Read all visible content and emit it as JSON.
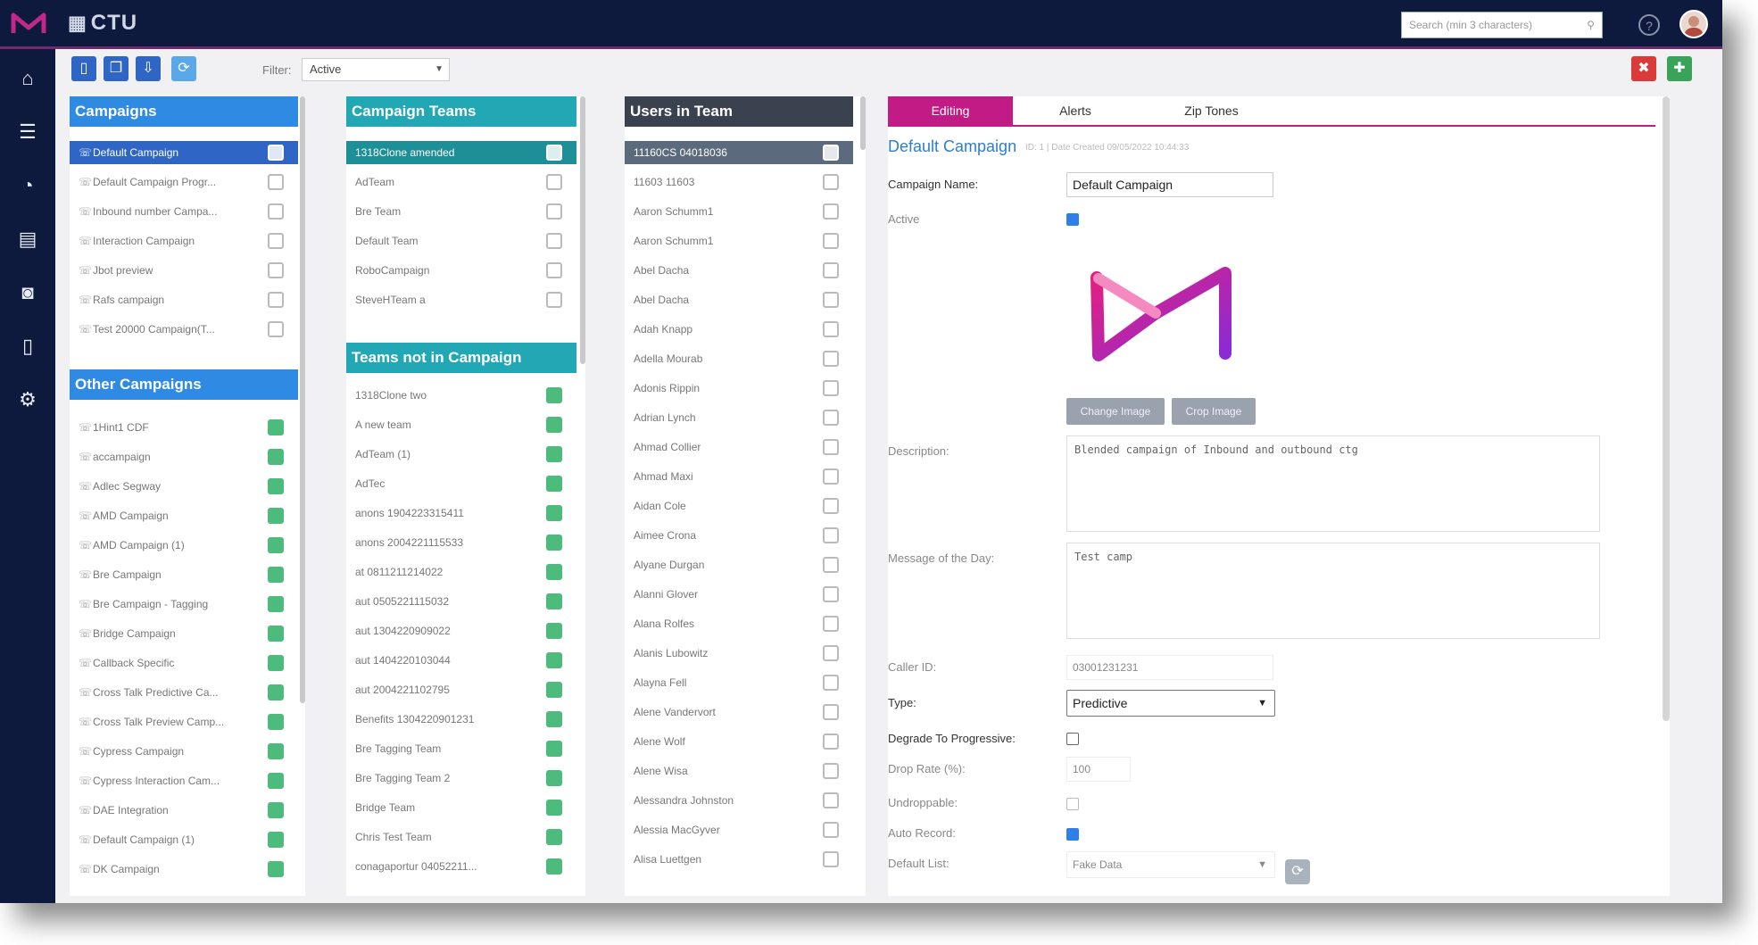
{
  "topbar": {
    "brand": "CTU",
    "search_placeholder": "Search (min 3 characters)"
  },
  "toolbar": {
    "filter_label": "Filter:",
    "filter_value": "Active"
  },
  "campaigns": {
    "title": "Campaigns",
    "items": [
      "Default Campaign",
      "Default Campaign Progr...",
      "Inbound number Campa...",
      "Interaction Campaign",
      "Jbot preview",
      "Rafs campaign",
      "Test 20000 Campaign(T..."
    ]
  },
  "other_campaigns": {
    "title": "Other Campaigns",
    "items": [
      "1Hint1 CDF",
      "accampaign",
      "Adlec Segway",
      "AMD Campaign",
      "AMD Campaign (1)",
      "Bre Campaign",
      "Bre Campaign - Tagging",
      "Bridge Campaign",
      "Callback Specific",
      "Cross Talk Predictive Ca...",
      "Cross Talk Preview Camp...",
      "Cypress Campaign",
      "Cypress Interaction Cam...",
      "DAE Integration",
      "Default Campaign (1)",
      "DK Campaign"
    ]
  },
  "campaign_teams": {
    "title": "Campaign Teams",
    "items": [
      "1318Clone amended",
      "AdTeam",
      "Bre Team",
      "Default Team",
      "RoboCampaign",
      "SteveHTeam a"
    ]
  },
  "teams_not_in_campaign": {
    "title": "Teams not in Campaign",
    "items": [
      "1318Clone two",
      "A new team",
      "AdTeam (1)",
      "AdTec",
      "anons 1904223315411",
      "anons 2004221115533",
      "at 0811211214022",
      "aut 0505221115032",
      "aut 1304220909022",
      "aut 1404220103044",
      "aut 2004221102795",
      "Benefits 1304220901231",
      "Bre Tagging Team",
      "Bre Tagging Team 2",
      "Bridge Team",
      "Chris Test Team",
      "conagaportur 04052211..."
    ]
  },
  "users_in_team": {
    "title": "Users in Team",
    "items": [
      "11160CS 04018036",
      "11603 11603",
      "Aaron Schumm1",
      "Aaron Schumm1",
      "Abel Dacha",
      "Abel Dacha",
      "Adah Knapp",
      "Adella Mourab",
      "Adonis Rippin",
      "Adrian Lynch",
      "Ahmad Collier",
      "Ahmad Maxi",
      "Aidan Cole",
      "Aimee Crona",
      "Alyane Durgan",
      "Alanni Glover",
      "Alana Rolfes",
      "Alanis Lubowitz",
      "Alayna Fell",
      "Alene Vandervort",
      "Alene Wolf",
      "Alene Wisa",
      "Alessandra Johnston",
      "Alessia MacGyver",
      "Alisa Luettgen"
    ]
  },
  "editor": {
    "tabs": [
      "Editing",
      "Alerts",
      "Zip Tones"
    ],
    "title": "Default Campaign",
    "subtitle": "ID: 1 | Date Created 09/05/2022 10:44:33",
    "labels": {
      "campaign_name": "Campaign Name:",
      "active": "Active",
      "description": "Description:",
      "motd": "Message of the Day:",
      "caller_id": "Caller ID:",
      "type": "Type:",
      "degrade": "Degrade To Progressive:",
      "drop_rate": "Drop Rate (%):",
      "undroppable": "Undroppable:",
      "auto_record": "Auto Record:",
      "default_list": "Default List:"
    },
    "values": {
      "campaign_name": "Default Campaign",
      "description": "Blended campaign of Inbound and outbound ctg",
      "motd": "Test camp",
      "caller_id": "03001231231",
      "type": "Predictive",
      "drop_rate": "100",
      "default_list": "Fake Data"
    },
    "buttons": {
      "change_image": "Change Image",
      "crop_image": "Crop Image"
    }
  }
}
